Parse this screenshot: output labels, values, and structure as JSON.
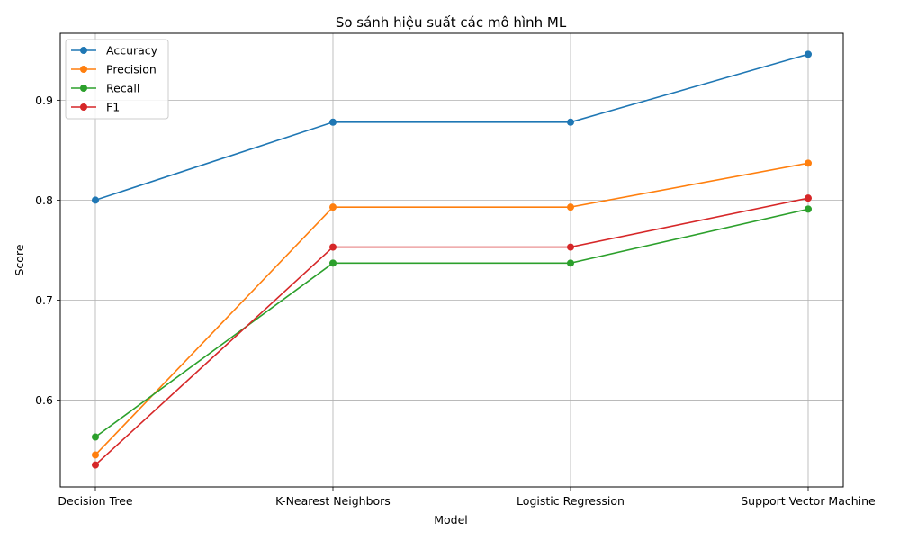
{
  "chart_data": {
    "type": "line",
    "title": "So sánh hiệu suất các mô hình ML",
    "xlabel": "Model",
    "ylabel": "Score",
    "categories": [
      "Decision Tree",
      "K-Nearest Neighbors",
      "Logistic Regression",
      "Support Vector Machine"
    ],
    "ylim": [
      0.513,
      0.967
    ],
    "yticks": [
      0.6,
      0.7,
      0.8,
      0.9
    ],
    "grid": true,
    "legend_position": "top-left",
    "series": [
      {
        "name": "Accuracy",
        "color": "#1f77b4",
        "values": [
          0.8,
          0.878,
          0.878,
          0.946
        ]
      },
      {
        "name": "Precision",
        "color": "#ff7f0e",
        "values": [
          0.545,
          0.793,
          0.793,
          0.837
        ]
      },
      {
        "name": "Recall",
        "color": "#2ca02c",
        "values": [
          0.563,
          0.737,
          0.737,
          0.791
        ]
      },
      {
        "name": "F1",
        "color": "#d62728",
        "values": [
          0.535,
          0.753,
          0.753,
          0.802
        ]
      }
    ]
  }
}
